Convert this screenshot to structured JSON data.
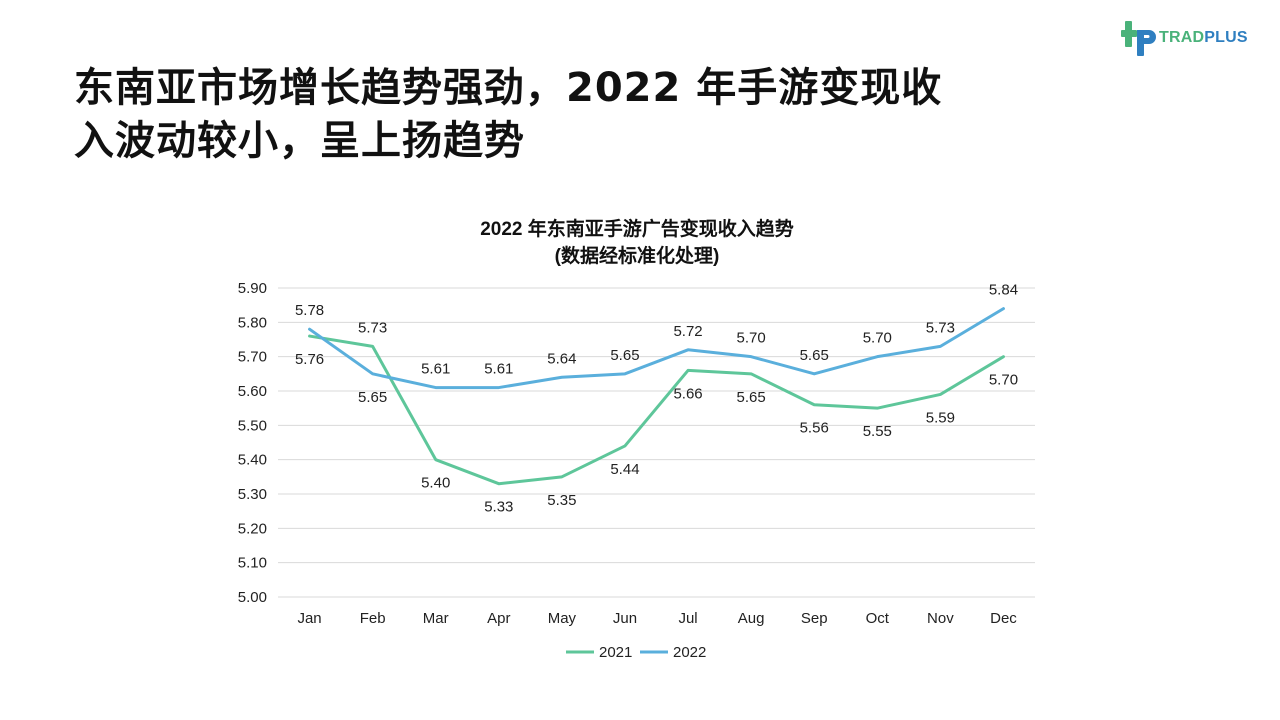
{
  "brand": {
    "name_part1": "TRAD",
    "name_part2": "PLUS",
    "colors": {
      "green": "#4ab27a",
      "blue": "#2f7fc0"
    }
  },
  "headline_lines": [
    "东南亚市场增长趋势强劲，2022 年手游变现收",
    "入波动较小，呈上扬趋势"
  ],
  "chart_data": {
    "type": "line",
    "title_lines": [
      "2022 年东南亚手游广告变现收入趋势",
      "(数据经标准化处理)"
    ],
    "categories": [
      "Jan",
      "Feb",
      "Mar",
      "Apr",
      "May",
      "Jun",
      "Jul",
      "Aug",
      "Sep",
      "Oct",
      "Nov",
      "Dec"
    ],
    "series": [
      {
        "name": "2021",
        "color": "#5ec69a",
        "values": [
          5.76,
          5.73,
          5.4,
          5.33,
          5.35,
          5.44,
          5.66,
          5.65,
          5.56,
          5.55,
          5.59,
          5.7
        ],
        "label_position": [
          "below",
          "above",
          "below",
          "below",
          "below",
          "below",
          "below",
          "below",
          "below",
          "below",
          "below",
          "below"
        ]
      },
      {
        "name": "2022",
        "color": "#5aafdc",
        "values": [
          5.78,
          5.65,
          5.61,
          5.61,
          5.64,
          5.65,
          5.72,
          5.7,
          5.65,
          5.7,
          5.73,
          5.84
        ],
        "label_position": [
          "above",
          "below",
          "above",
          "above",
          "above",
          "above",
          "above",
          "above",
          "above",
          "above",
          "above",
          "above"
        ]
      }
    ],
    "ylim": [
      5.0,
      5.9
    ],
    "yticks": [
      "5.00",
      "5.10",
      "5.20",
      "5.30",
      "5.40",
      "5.50",
      "5.60",
      "5.70",
      "5.80",
      "5.90"
    ],
    "grid": true,
    "legend": "bottom"
  }
}
